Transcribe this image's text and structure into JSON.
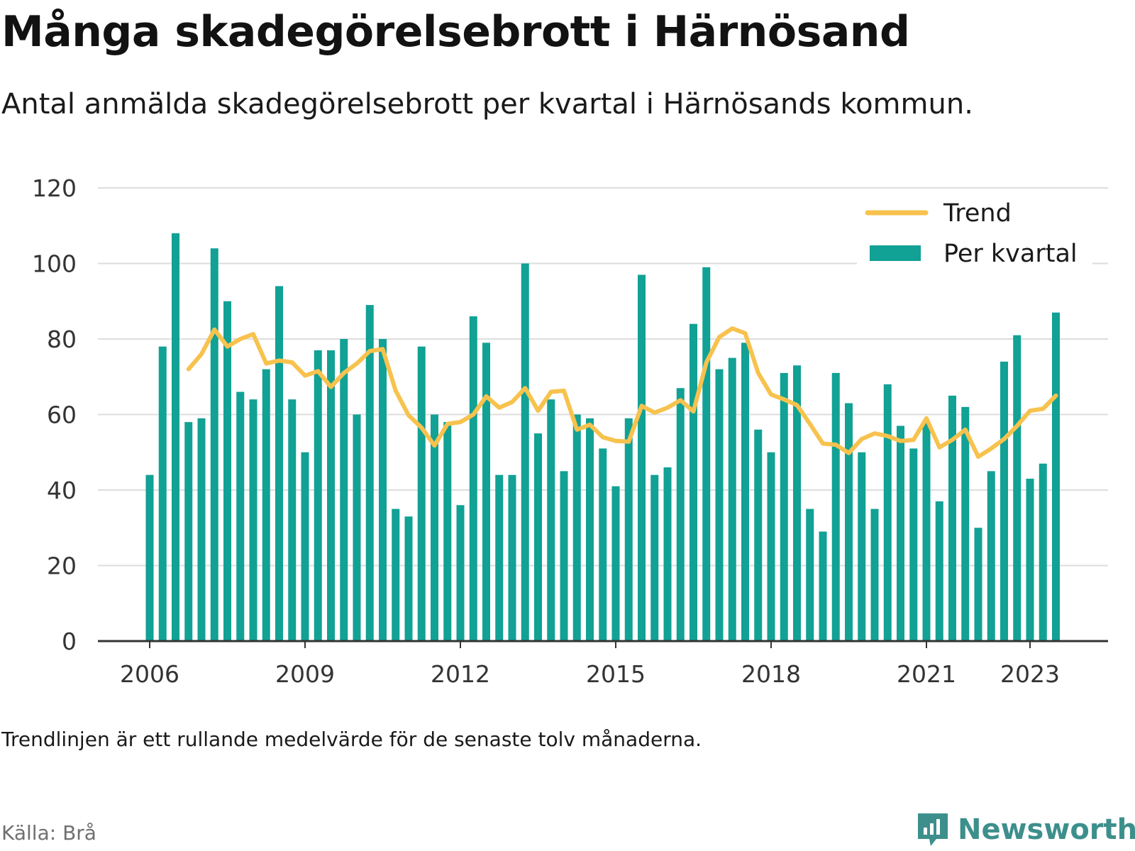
{
  "title": "Många skadegörelsebrott i Härnösand",
  "subtitle": "Antal anmälda skadegörelsebrott per kvartal i Härnösands kommun.",
  "footnote": "Trendlinjen är ett rullande medelvärde för de senaste tolv månaderna.",
  "source": "Källa: Brå",
  "brand": "Newsworthy",
  "colors": {
    "bars": "#11a195",
    "trend": "#f7c24d",
    "grid": "#dddddd",
    "axis": "#333333",
    "brand": "#3d8f8c"
  },
  "chart_data": {
    "type": "bar",
    "x_tick_labels": [
      "2006",
      "2009",
      "2012",
      "2015",
      "2018",
      "2021",
      "2023"
    ],
    "x_tick_quarters": [
      "2006 Q1",
      "2009 Q1",
      "2012 Q1",
      "2015 Q1",
      "2018 Q1",
      "2021 Q1",
      "2023 Q1"
    ],
    "y_ticks": [
      0,
      20,
      40,
      60,
      80,
      100,
      120
    ],
    "ylim": [
      0,
      120
    ],
    "grid": true,
    "legend_position": "top-right",
    "series": [
      {
        "name": "Per kvartal",
        "type": "bar",
        "start": "2006 Q1",
        "values": [
          44,
          78,
          108,
          58,
          59,
          104,
          90,
          66,
          64,
          72,
          94,
          64,
          50,
          77,
          77,
          80,
          60,
          89,
          80,
          35,
          33,
          78,
          60,
          58,
          36,
          86,
          79,
          44,
          44,
          100,
          55,
          64,
          45,
          60,
          59,
          51,
          41,
          59,
          97,
          44,
          46,
          67,
          84,
          99,
          72,
          75,
          79,
          56,
          50,
          71,
          73,
          35,
          29,
          71,
          63,
          50,
          35,
          68,
          57,
          51,
          58,
          37,
          65,
          62,
          30,
          45,
          74,
          81,
          43,
          47,
          87
        ]
      },
      {
        "name": "Trend",
        "type": "line",
        "start": "2006 Q4",
        "values": [
          72,
          76,
          82.5,
          78,
          80,
          81.3,
          73.5,
          74.3,
          73.8,
          70.3,
          71.5,
          67.3,
          71,
          73.5,
          76.8,
          77.3,
          66.3,
          59.8,
          56.5,
          51.8,
          57.5,
          58,
          60,
          64.8,
          61.8,
          63.3,
          67,
          61,
          66,
          66.3,
          56,
          57.3,
          54,
          53,
          52.8,
          62.3,
          60.5,
          61.8,
          63.8,
          60.8,
          73.8,
          80.5,
          82.8,
          81.5,
          71,
          65.3,
          64,
          62.5,
          57.5,
          52.3,
          52,
          49.8,
          53.5,
          55,
          54.3,
          53,
          53.3,
          59,
          51.3,
          53.3,
          56,
          48.8,
          51,
          53.5,
          57,
          61,
          61.5,
          65
        ]
      }
    ]
  }
}
